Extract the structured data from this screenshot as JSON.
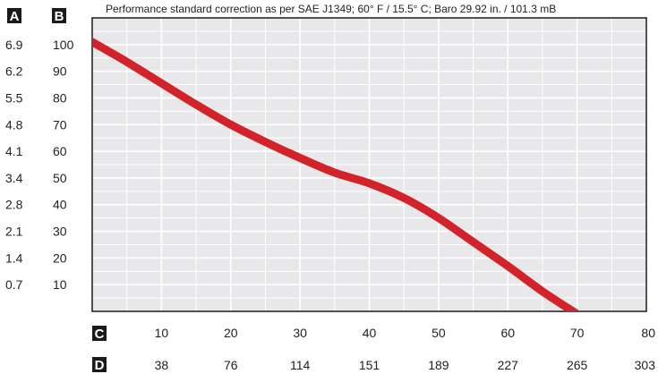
{
  "chart_data": {
    "type": "line",
    "title": "Performance standard correction as per SAE J1349;  60° F / 15.5° C;  Baro 29.92 in. / 101.3 mB",
    "axis_badges": {
      "left_outer": "A",
      "left_inner": "B",
      "bottom_upper": "C",
      "bottom_lower": "D"
    },
    "y_left_outer": {
      "ticks": [
        "6.9",
        "6.2",
        "5.5",
        "4.8",
        "4.1",
        "3.4",
        "2.8",
        "2.1",
        "1.4",
        "0.7"
      ]
    },
    "y_left_inner": {
      "ticks": [
        "100",
        "90",
        "80",
        "70",
        "60",
        "50",
        "40",
        "30",
        "20",
        "10"
      ]
    },
    "x_upper": {
      "ticks": [
        "10",
        "20",
        "30",
        "40",
        "50",
        "60",
        "70",
        "80"
      ]
    },
    "x_lower": {
      "ticks": [
        "38",
        "76",
        "114",
        "151",
        "189",
        "227",
        "265",
        "303"
      ]
    },
    "xlim": [
      0,
      80
    ],
    "ylim": [
      0,
      110
    ],
    "grid": true,
    "series": [
      {
        "color": "#d2232a",
        "x": [
          0,
          5,
          10,
          15,
          20,
          25,
          30,
          35,
          40,
          45,
          50,
          55,
          60,
          65,
          70
        ],
        "y": [
          101,
          93.5,
          85.5,
          77.5,
          70,
          63.5,
          57.5,
          52,
          48,
          42.5,
          35,
          26,
          17,
          7.5,
          -1
        ]
      }
    ],
    "colors": {
      "line": "#d2232a",
      "plot_background": "#e8e8eb",
      "grid": "#ffffff",
      "badge": "#1a1a1a"
    }
  }
}
